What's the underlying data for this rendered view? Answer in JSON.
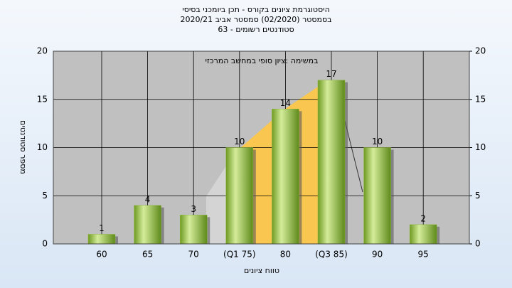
{
  "chart_data": {
    "type": "bar",
    "title": "היסטוגרמת ציונים בקורס - תכן ביומכני בסיסי",
    "subtitle": "בסמסטר  (02/2020)  סמסטר אביב 2020/21",
    "subtitle2": "סטודנטים רשומים - 63",
    "annotation": "במשימה :ציון סופי במחשב המרכזי",
    "y_label": "מספר סטודנטים",
    "x_label": "טווח ציונים",
    "categories": [
      "60",
      "65",
      "70",
      "(Q1 75)",
      "80",
      "(Q3 85)",
      "90",
      "95"
    ],
    "values": [
      1,
      4,
      3,
      10,
      14,
      17,
      10,
      2
    ],
    "color": "#8fb83a",
    "ylim": [
      0,
      20
    ],
    "yticks": [
      0,
      5,
      10,
      15,
      20
    ],
    "y2lim": [
      0,
      20
    ],
    "y2ticks": [
      0,
      5,
      10,
      15,
      20
    ],
    "grid": true
  }
}
